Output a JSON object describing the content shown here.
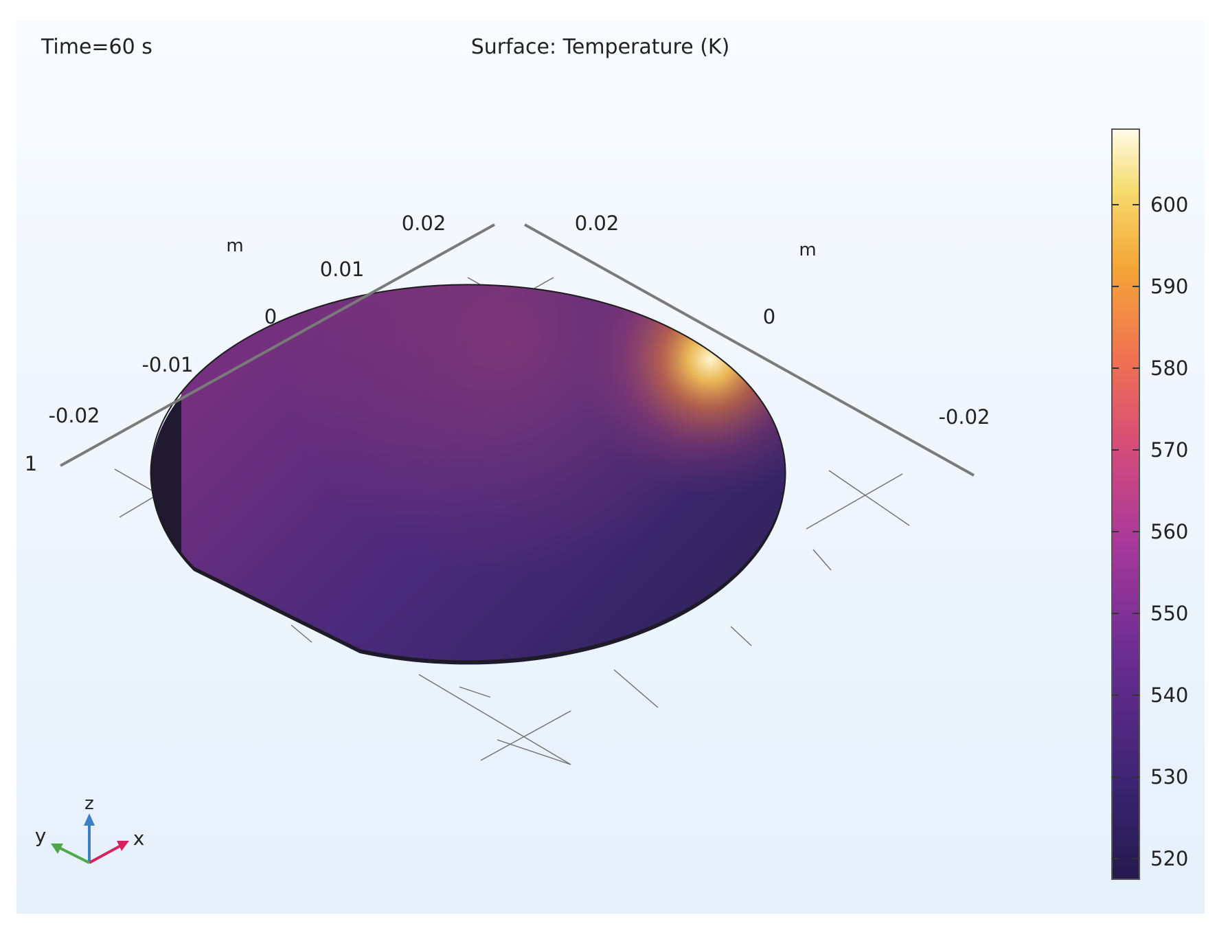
{
  "header": {
    "time_label": "Time=60 s",
    "plot_title": "Surface: Temperature (K)"
  },
  "axes": {
    "left": {
      "unit": "m",
      "ticks": [
        "0.02",
        "0.01",
        "0",
        "-0.01",
        "-0.02"
      ],
      "end_label": "1"
    },
    "right": {
      "unit": "m",
      "ticks": [
        "0.02",
        "0",
        "-0.02"
      ]
    }
  },
  "colorbar": {
    "ticks": [
      "600",
      "590",
      "580",
      "570",
      "560",
      "550",
      "540",
      "530",
      "520"
    ],
    "colormap": "inferno-like",
    "colors": {
      "min": "#2a1e5c",
      "low": "#5a2a86",
      "mid": "#b84a86",
      "high": "#f08a3c",
      "max": "#fdf6d8"
    }
  },
  "triad": {
    "x_label": "x",
    "y_label": "y",
    "z_label": "z",
    "colors": {
      "x": "#d4245f",
      "y": "#4fa84a",
      "z": "#3d7fc4"
    }
  }
}
